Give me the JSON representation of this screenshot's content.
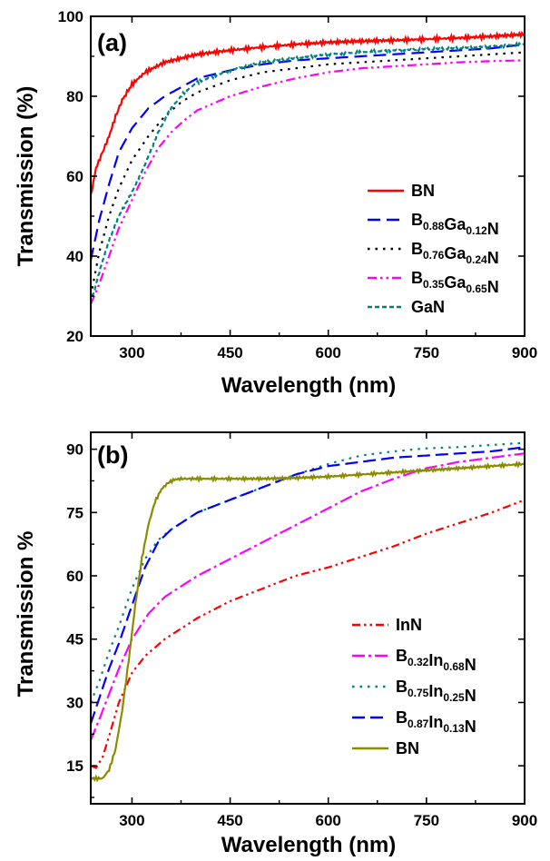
{
  "chart_data": [
    {
      "type": "line",
      "panel_label": "(a)",
      "xlabel": "Wavelength (nm)",
      "ylabel": "Transmission (%)",
      "xlim": [
        237,
        900
      ],
      "ylim": [
        20,
        100
      ],
      "xticks": [
        300,
        450,
        600,
        750,
        900
      ],
      "yticks": [
        20,
        40,
        60,
        80,
        100
      ],
      "legend_position": "bottom-right",
      "series": [
        {
          "name": "BN",
          "label_main": [
            "B",
            "N"
          ],
          "label_subs": [],
          "color": "#ff0000",
          "dash": "solid",
          "noise": 0.6,
          "x": [
            237,
            245,
            255,
            265,
            275,
            285,
            300,
            320,
            350,
            400,
            450,
            500,
            550,
            600,
            650,
            700,
            750,
            800,
            850,
            900
          ],
          "y": [
            55,
            62,
            66,
            70,
            75,
            79,
            83,
            86,
            88.5,
            90.5,
            91.5,
            92.3,
            93,
            93.5,
            93.8,
            94,
            94.3,
            94.6,
            95,
            95.5
          ]
        },
        {
          "name": "B0.88Ga0.12N",
          "label_main": [
            "B",
            "Ga",
            "N"
          ],
          "label_subs": [
            "0.88",
            "0.12"
          ],
          "color": "#0000ff",
          "dash": "14 7",
          "noise": 0,
          "x": [
            237,
            250,
            265,
            280,
            300,
            325,
            350,
            400,
            450,
            500,
            550,
            600,
            650,
            700,
            750,
            800,
            850,
            900
          ],
          "y": [
            39,
            49,
            58,
            66,
            72,
            77,
            80,
            84.5,
            86.5,
            88,
            89,
            89.5,
            90,
            90.5,
            91,
            91.5,
            92,
            93
          ]
        },
        {
          "name": "B0.76Ga0.24N",
          "label_main": [
            "B",
            "Ga",
            "N"
          ],
          "label_subs": [
            "0.76",
            "0.24"
          ],
          "color": "#000000",
          "dash": "2.5 6",
          "noise": 0,
          "x": [
            237,
            250,
            265,
            280,
            300,
            325,
            350,
            375,
            400,
            450,
            500,
            550,
            600,
            650,
            700,
            750,
            800,
            850,
            900
          ],
          "y": [
            30,
            41,
            50,
            57,
            64,
            70,
            75,
            78.5,
            81,
            84,
            86,
            87,
            88,
            88.5,
            89,
            89.5,
            90,
            90.5,
            91
          ]
        },
        {
          "name": "B0.35Ga0.65N",
          "label_main": [
            "B",
            "Ga",
            "N"
          ],
          "label_subs": [
            "0.35",
            "0.65"
          ],
          "color": "#ff00ff",
          "dash": "10 4 2.5 4 2.5 4",
          "noise": 0,
          "x": [
            237,
            250,
            265,
            280,
            300,
            320,
            340,
            360,
            380,
            400,
            450,
            500,
            550,
            600,
            650,
            700,
            750,
            800,
            850,
            900
          ],
          "y": [
            28,
            33,
            40,
            47,
            54,
            61,
            67,
            71,
            74,
            76.5,
            80,
            82.5,
            84.5,
            86,
            87,
            87.5,
            88,
            88.5,
            88.8,
            89
          ]
        },
        {
          "name": "GaN",
          "label_main": [
            "GaN"
          ],
          "label_subs": [],
          "color": "#008080",
          "dash": "5 3",
          "noise": 0.4,
          "x": [
            237,
            250,
            265,
            280,
            300,
            320,
            340,
            360,
            380,
            400,
            450,
            500,
            550,
            600,
            650,
            700,
            750,
            800,
            850,
            900
          ],
          "y": [
            28,
            36,
            44,
            50,
            56,
            63,
            71,
            77,
            81,
            83.5,
            86.5,
            88.5,
            89.5,
            90.5,
            91,
            91.5,
            91.8,
            92,
            92.5,
            93
          ]
        }
      ]
    },
    {
      "type": "line",
      "panel_label": "(b)",
      "xlabel": "Wavelength (nm)",
      "ylabel": "Transmission %",
      "xlim": [
        237,
        900
      ],
      "ylim": [
        6,
        94
      ],
      "xticks": [
        300,
        450,
        600,
        750,
        900
      ],
      "yticks": [
        15,
        30,
        45,
        60,
        75,
        90
      ],
      "legend_position": "bottom-right",
      "series": [
        {
          "name": "InN",
          "label_main": [
            "InN"
          ],
          "label_subs": [],
          "color": "#ff0000",
          "dash": "9 4 2.5 4 2.5 4",
          "noise": 0,
          "x": [
            237,
            245,
            255,
            265,
            280,
            300,
            320,
            350,
            400,
            450,
            500,
            550,
            600,
            650,
            700,
            750,
            800,
            850,
            900
          ],
          "y": [
            15,
            14.5,
            17,
            22,
            30,
            37,
            41,
            45,
            50,
            54,
            57,
            60,
            62,
            64.5,
            67,
            70,
            72.5,
            75,
            78
          ]
        },
        {
          "name": "B0.32In0.68N",
          "label_main": [
            "B",
            "In",
            "N"
          ],
          "label_subs": [
            "0.32",
            "0.68"
          ],
          "color": "#ff00ff",
          "dash": "14 4 3 4",
          "noise": 0,
          "x": [
            237,
            250,
            265,
            280,
            300,
            325,
            350,
            400,
            450,
            500,
            550,
            600,
            650,
            700,
            750,
            800,
            850,
            900
          ],
          "y": [
            21,
            26,
            32,
            38,
            45,
            51,
            55,
            60,
            64,
            68,
            72,
            76,
            80,
            83,
            85.5,
            87,
            88,
            89
          ]
        },
        {
          "name": "B0.75In0.25N",
          "label_main": [
            "B",
            "In",
            "N"
          ],
          "label_subs": [
            "0.75",
            "0.25"
          ],
          "color": "#008080",
          "dash": "2.5 6",
          "noise": 0,
          "x": [
            237,
            250,
            265,
            280,
            300,
            320,
            340,
            360,
            380,
            400,
            450,
            500,
            550,
            600,
            650,
            700,
            750,
            800,
            850,
            900
          ],
          "y": [
            30,
            35,
            42,
            48,
            57,
            64,
            68.5,
            71,
            73,
            75,
            78,
            81,
            84,
            86.5,
            88.5,
            89.5,
            90.2,
            90.5,
            91,
            91.5
          ]
        },
        {
          "name": "B0.87In0.13N",
          "label_main": [
            "B",
            "In",
            "N"
          ],
          "label_subs": [
            "0.87",
            "0.13"
          ],
          "color": "#0000ff",
          "dash": "14 6",
          "noise": 0,
          "x": [
            237,
            250,
            265,
            280,
            300,
            320,
            340,
            360,
            380,
            400,
            450,
            500,
            550,
            600,
            650,
            700,
            750,
            800,
            850,
            900
          ],
          "y": [
            25,
            31,
            38,
            44,
            53,
            62,
            68,
            71,
            73,
            75,
            78,
            81,
            84,
            86,
            87,
            88,
            88.5,
            89,
            89.5,
            90.5
          ]
        },
        {
          "name": "BN",
          "label_main": [
            "BN"
          ],
          "label_subs": [],
          "color": "#8b8b00",
          "dash": "solid",
          "noise": 0.4,
          "x": [
            237,
            245,
            255,
            265,
            275,
            285,
            295,
            305,
            315,
            325,
            335,
            345,
            355,
            365,
            375,
            400,
            450,
            500,
            550,
            600,
            650,
            700,
            750,
            800,
            850,
            900
          ],
          "y": [
            12,
            12,
            12,
            14,
            19,
            28,
            40,
            53,
            64,
            72,
            77.5,
            80.5,
            82,
            82.8,
            83,
            83,
            83,
            83,
            83.2,
            83.5,
            84,
            84.5,
            85,
            85.5,
            86,
            86.5
          ]
        }
      ]
    }
  ]
}
